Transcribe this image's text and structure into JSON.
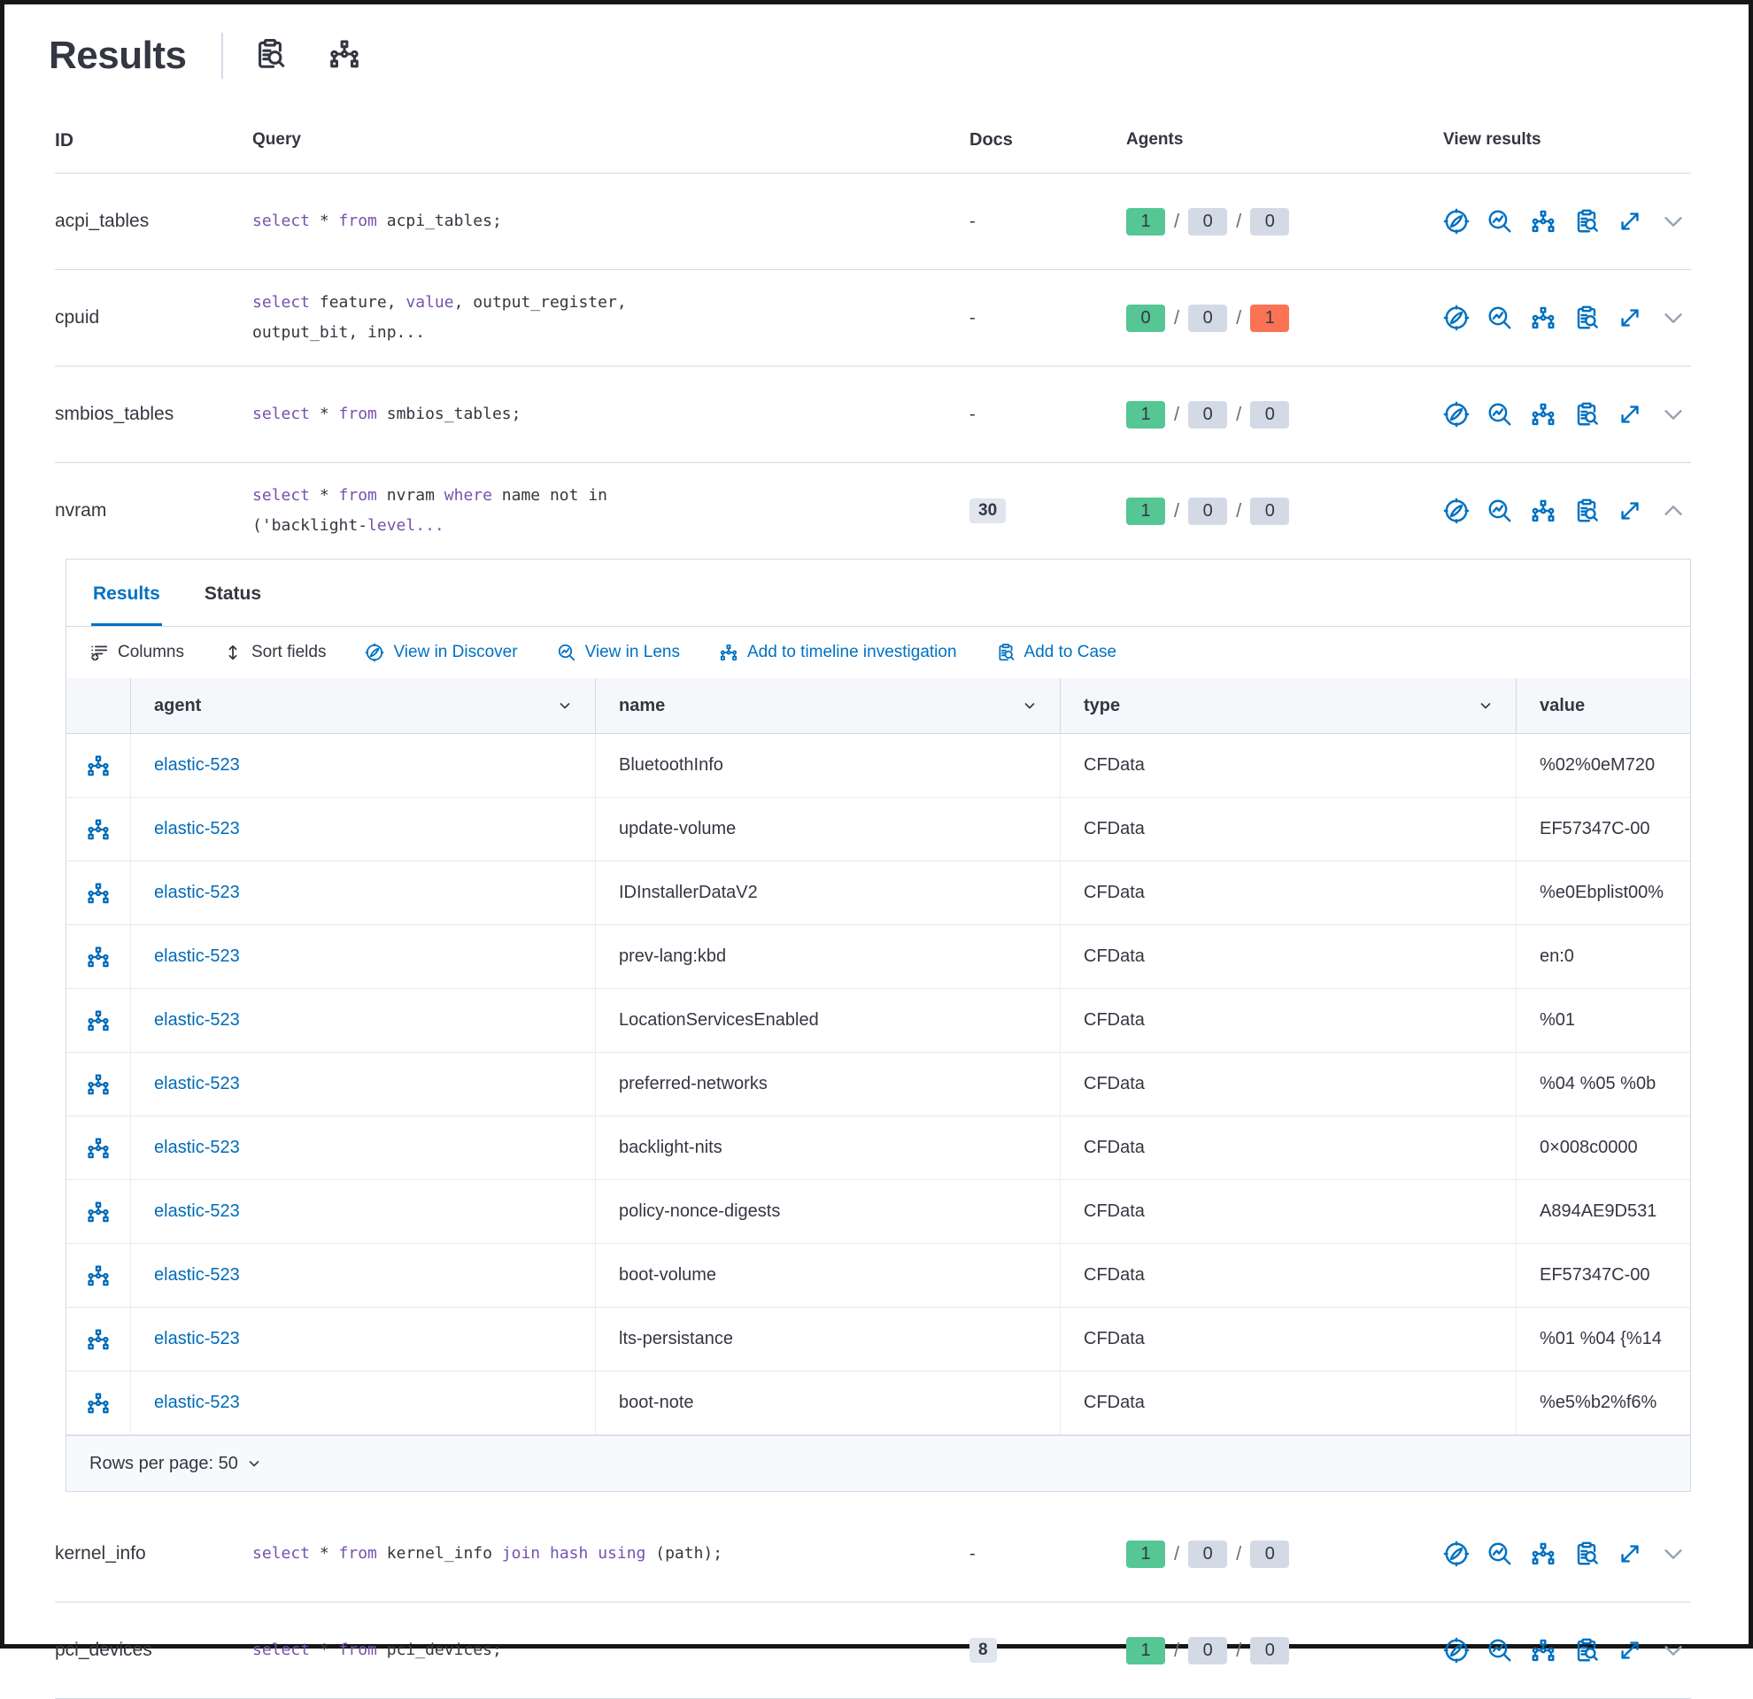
{
  "title": "Results",
  "header": {
    "icons": [
      {
        "name": "inspect"
      },
      {
        "name": "timeline"
      }
    ]
  },
  "colors": {
    "accent_blue": "#0071c2",
    "link_blue": "#006bb8",
    "keyword_purple": "#7752af",
    "badge_green": "#55c694",
    "badge_grey": "#d3dae6",
    "badge_red": "#fa7355"
  },
  "columns": {
    "id": "ID",
    "query": "Query",
    "docs": "Docs",
    "agents": "Agents",
    "view": "View results"
  },
  "view_icon_names": [
    "discover",
    "lens",
    "timeline",
    "case",
    "expand"
  ],
  "queries": [
    {
      "id": "acpi_tables",
      "segments": [
        {
          "t": "select",
          "k": 1
        },
        {
          "t": " * "
        },
        {
          "t": "from",
          "k": 1
        },
        {
          "t": " acpi_tables;"
        }
      ],
      "docs": "-",
      "docs_badge": false,
      "agents": [
        {
          "v": "1",
          "c": "green"
        },
        {
          "v": "0",
          "c": "greyb"
        },
        {
          "v": "0",
          "c": "greyb"
        }
      ],
      "chevron": "down",
      "placement": "before"
    },
    {
      "id": "cpuid",
      "segments": [
        {
          "t": "select",
          "k": 1
        },
        {
          "t": " feature, "
        },
        {
          "t": "value",
          "k": 1
        },
        {
          "t": ", output_register,"
        },
        {
          "br": 1
        },
        {
          "t": "output_bit, inp..."
        }
      ],
      "docs": "-",
      "docs_badge": false,
      "agents": [
        {
          "v": "0",
          "c": "green"
        },
        {
          "v": "0",
          "c": "greyb"
        },
        {
          "v": "1",
          "c": "redb"
        }
      ],
      "chevron": "down",
      "placement": "before"
    },
    {
      "id": "smbios_tables",
      "segments": [
        {
          "t": "select",
          "k": 1
        },
        {
          "t": " * "
        },
        {
          "t": "from",
          "k": 1
        },
        {
          "t": " smbios_tables;"
        }
      ],
      "docs": "-",
      "docs_badge": false,
      "agents": [
        {
          "v": "1",
          "c": "green"
        },
        {
          "v": "0",
          "c": "greyb"
        },
        {
          "v": "0",
          "c": "greyb"
        }
      ],
      "chevron": "down",
      "placement": "before"
    },
    {
      "id": "nvram",
      "segments": [
        {
          "t": "select",
          "k": 1
        },
        {
          "t": " * "
        },
        {
          "t": "from",
          "k": 1
        },
        {
          "t": " nvram "
        },
        {
          "t": "where",
          "k": 1
        },
        {
          "t": " name not in"
        },
        {
          "br": 1
        },
        {
          "t": "('backlight-"
        },
        {
          "t": "level...",
          "k": 1
        }
      ],
      "docs": "30",
      "docs_badge": true,
      "agents": [
        {
          "v": "1",
          "c": "green"
        },
        {
          "v": "0",
          "c": "greyb"
        },
        {
          "v": "0",
          "c": "greyb"
        }
      ],
      "chevron": "up",
      "expanded": true,
      "placement": "before"
    },
    {
      "id": "kernel_info",
      "segments": [
        {
          "t": "select",
          "k": 1
        },
        {
          "t": " * "
        },
        {
          "t": "from",
          "k": 1
        },
        {
          "t": " kernel_info "
        },
        {
          "t": "join",
          "k": 1
        },
        {
          "t": " "
        },
        {
          "t": "hash",
          "k": 1
        },
        {
          "t": " "
        },
        {
          "t": "using",
          "k": 1
        },
        {
          "t": " (path);"
        }
      ],
      "docs": "-",
      "docs_badge": false,
      "agents": [
        {
          "v": "1",
          "c": "green"
        },
        {
          "v": "0",
          "c": "greyb"
        },
        {
          "v": "0",
          "c": "greyb"
        }
      ],
      "chevron": "down",
      "placement": "after"
    },
    {
      "id": "pci_devices",
      "segments": [
        {
          "t": "select",
          "k": 1
        },
        {
          "t": " * "
        },
        {
          "t": "from",
          "k": 1
        },
        {
          "t": " pci_devices;"
        }
      ],
      "docs": "8",
      "docs_badge": true,
      "agents": [
        {
          "v": "1",
          "c": "green"
        },
        {
          "v": "0",
          "c": "greyb"
        },
        {
          "v": "0",
          "c": "greyb"
        }
      ],
      "chevron": "down",
      "placement": "after"
    }
  ],
  "panel": {
    "tabs": [
      {
        "label": "Results",
        "active": true
      },
      {
        "label": "Status",
        "active": false
      }
    ],
    "toolbar": [
      {
        "label": "Columns",
        "icon": "columns",
        "blue": false
      },
      {
        "label": "Sort fields",
        "icon": "sort",
        "blue": false
      },
      {
        "label": "View in Discover",
        "icon": "discover",
        "blue": true
      },
      {
        "label": "View in Lens",
        "icon": "lens",
        "blue": true
      },
      {
        "label": "Add to timeline investigation",
        "icon": "timeline",
        "blue": true
      },
      {
        "label": "Add to Case",
        "icon": "case",
        "blue": true
      }
    ],
    "grid": {
      "columns": [
        {
          "label": "agent"
        },
        {
          "label": "name"
        },
        {
          "label": "type"
        },
        {
          "label": "value"
        }
      ],
      "rows": [
        {
          "agent": "elastic-523",
          "name": "BluetoothInfo",
          "type": "CFData",
          "value": "%02%0eM720"
        },
        {
          "agent": "elastic-523",
          "name": "update-volume",
          "type": "CFData",
          "value": "EF57347C-00"
        },
        {
          "agent": "elastic-523",
          "name": "IDInstallerDataV2",
          "type": "CFData",
          "value": "%e0Ebplist00%"
        },
        {
          "agent": "elastic-523",
          "name": "prev-lang:kbd",
          "type": "CFData",
          "value": "en:0"
        },
        {
          "agent": "elastic-523",
          "name": "LocationServicesEnabled",
          "type": "CFData",
          "value": "%01"
        },
        {
          "agent": "elastic-523",
          "name": "preferred-networks",
          "type": "CFData",
          "value": "%04 %05 %0b"
        },
        {
          "agent": "elastic-523",
          "name": "backlight-nits",
          "type": "CFData",
          "value": "0×008c0000"
        },
        {
          "agent": "elastic-523",
          "name": "policy-nonce-digests",
          "type": "CFData",
          "value": "A894AE9D531"
        },
        {
          "agent": "elastic-523",
          "name": "boot-volume",
          "type": "CFData",
          "value": "EF57347C-00"
        },
        {
          "agent": "elastic-523",
          "name": "lts-persistance",
          "type": "CFData",
          "value": "%01 %04 {%14"
        },
        {
          "agent": "elastic-523",
          "name": "boot-note",
          "type": "CFData",
          "value": "%e5%b2%f6%"
        }
      ]
    },
    "footer": {
      "rows_per_page_label": "Rows per page: 50"
    }
  }
}
